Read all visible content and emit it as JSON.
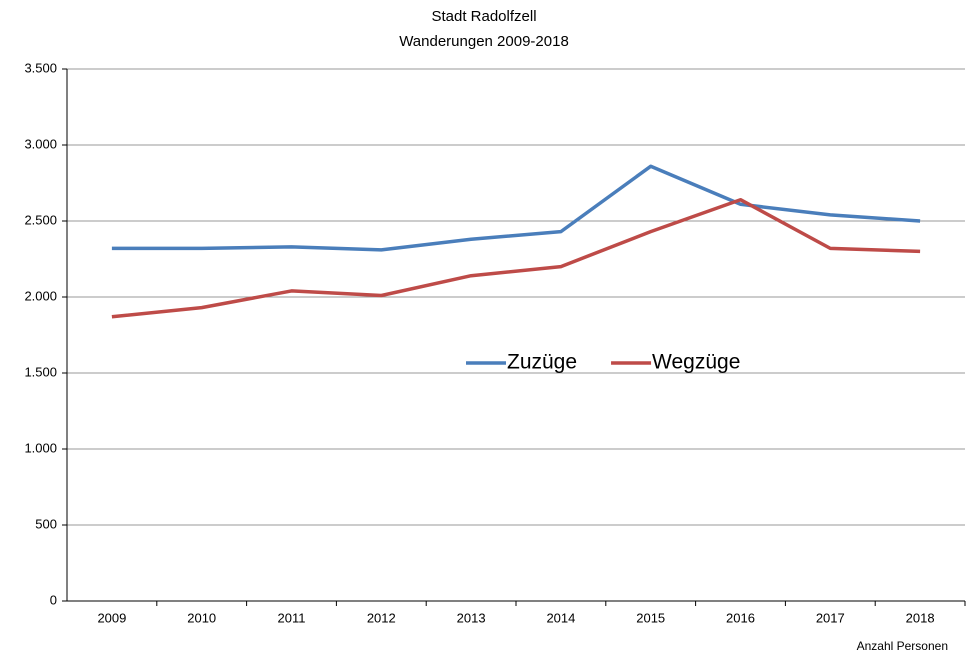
{
  "chart_data": {
    "type": "line",
    "title": "Stadt Radolfzell",
    "subtitle": "Wanderungen 2009-2018",
    "annotation": "Anzahl Personen",
    "categories": [
      "2009",
      "2010",
      "2011",
      "2012",
      "2013",
      "2014",
      "2015",
      "2016",
      "2017",
      "2018"
    ],
    "series": [
      {
        "name": "Zuzüge",
        "color": "#4a7ebb",
        "values": [
          2320,
          2320,
          2330,
          2310,
          2380,
          2430,
          2860,
          2610,
          2540,
          2500
        ]
      },
      {
        "name": "Wegzüge",
        "color": "#be4b48",
        "values": [
          1870,
          1930,
          2040,
          2010,
          2140,
          2200,
          2430,
          2640,
          2320,
          2300
        ]
      }
    ],
    "ylim": [
      0,
      3500
    ],
    "yticks": [
      0,
      500,
      {
        "value": 1000,
        "label": "1.000"
      },
      {
        "value": 1500,
        "label": "1.500"
      },
      {
        "value": 2000,
        "label": "2.000"
      },
      {
        "value": 2500,
        "label": "2.500"
      },
      {
        "value": 3000,
        "label": "3.000"
      },
      {
        "value": 3500,
        "label": "3.500"
      }
    ],
    "grid": true,
    "legend": "center"
  }
}
